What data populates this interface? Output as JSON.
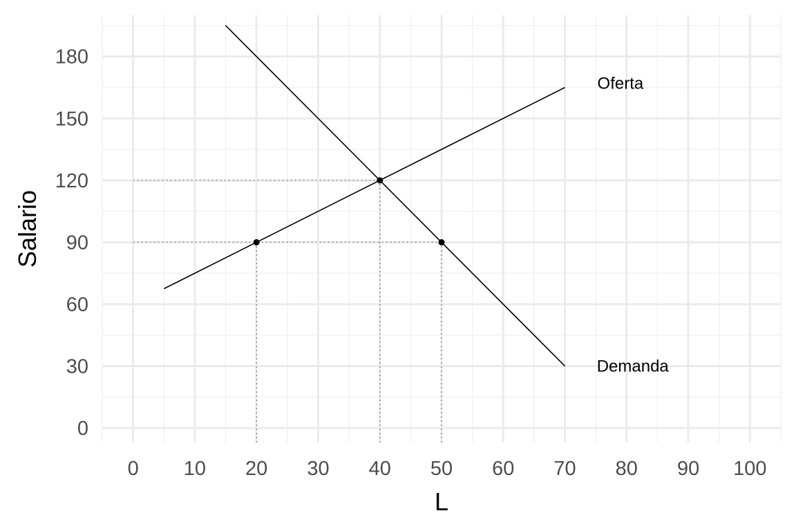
{
  "chart_data": {
    "type": "line",
    "xlabel": "L",
    "ylabel": "Salario",
    "xlim": [
      -5,
      105
    ],
    "ylim": [
      -7,
      200
    ],
    "x_ticks": [
      0,
      10,
      20,
      30,
      40,
      50,
      60,
      70,
      80,
      90,
      100
    ],
    "y_ticks": [
      0,
      30,
      60,
      90,
      120,
      150,
      180
    ],
    "grid": true,
    "colors": {
      "grid_major": "#ebebeb",
      "grid_minor": "#f2f2f2",
      "line": "#000000",
      "guide": "#8c8c8c"
    },
    "series": [
      {
        "name": "Oferta",
        "x": [
          5,
          70
        ],
        "y": [
          67.5,
          165
        ],
        "label_at": [
          79,
          167
        ]
      },
      {
        "name": "Demanda",
        "x": [
          15,
          70
        ],
        "y": [
          195,
          30
        ],
        "label_at": [
          81,
          30
        ]
      }
    ],
    "points": [
      {
        "x": 20,
        "y": 90
      },
      {
        "x": 40,
        "y": 120
      },
      {
        "x": 50,
        "y": 90
      }
    ],
    "guides": [
      {
        "x": [
          0,
          40
        ],
        "y": [
          120,
          120
        ]
      },
      {
        "x": [
          0,
          50
        ],
        "y": [
          90,
          90
        ]
      },
      {
        "x": [
          20,
          20
        ],
        "y": [
          -7,
          90
        ]
      },
      {
        "x": [
          40,
          40
        ],
        "y": [
          -7,
          120
        ]
      },
      {
        "x": [
          50,
          50
        ],
        "y": [
          -7,
          90
        ]
      }
    ]
  }
}
